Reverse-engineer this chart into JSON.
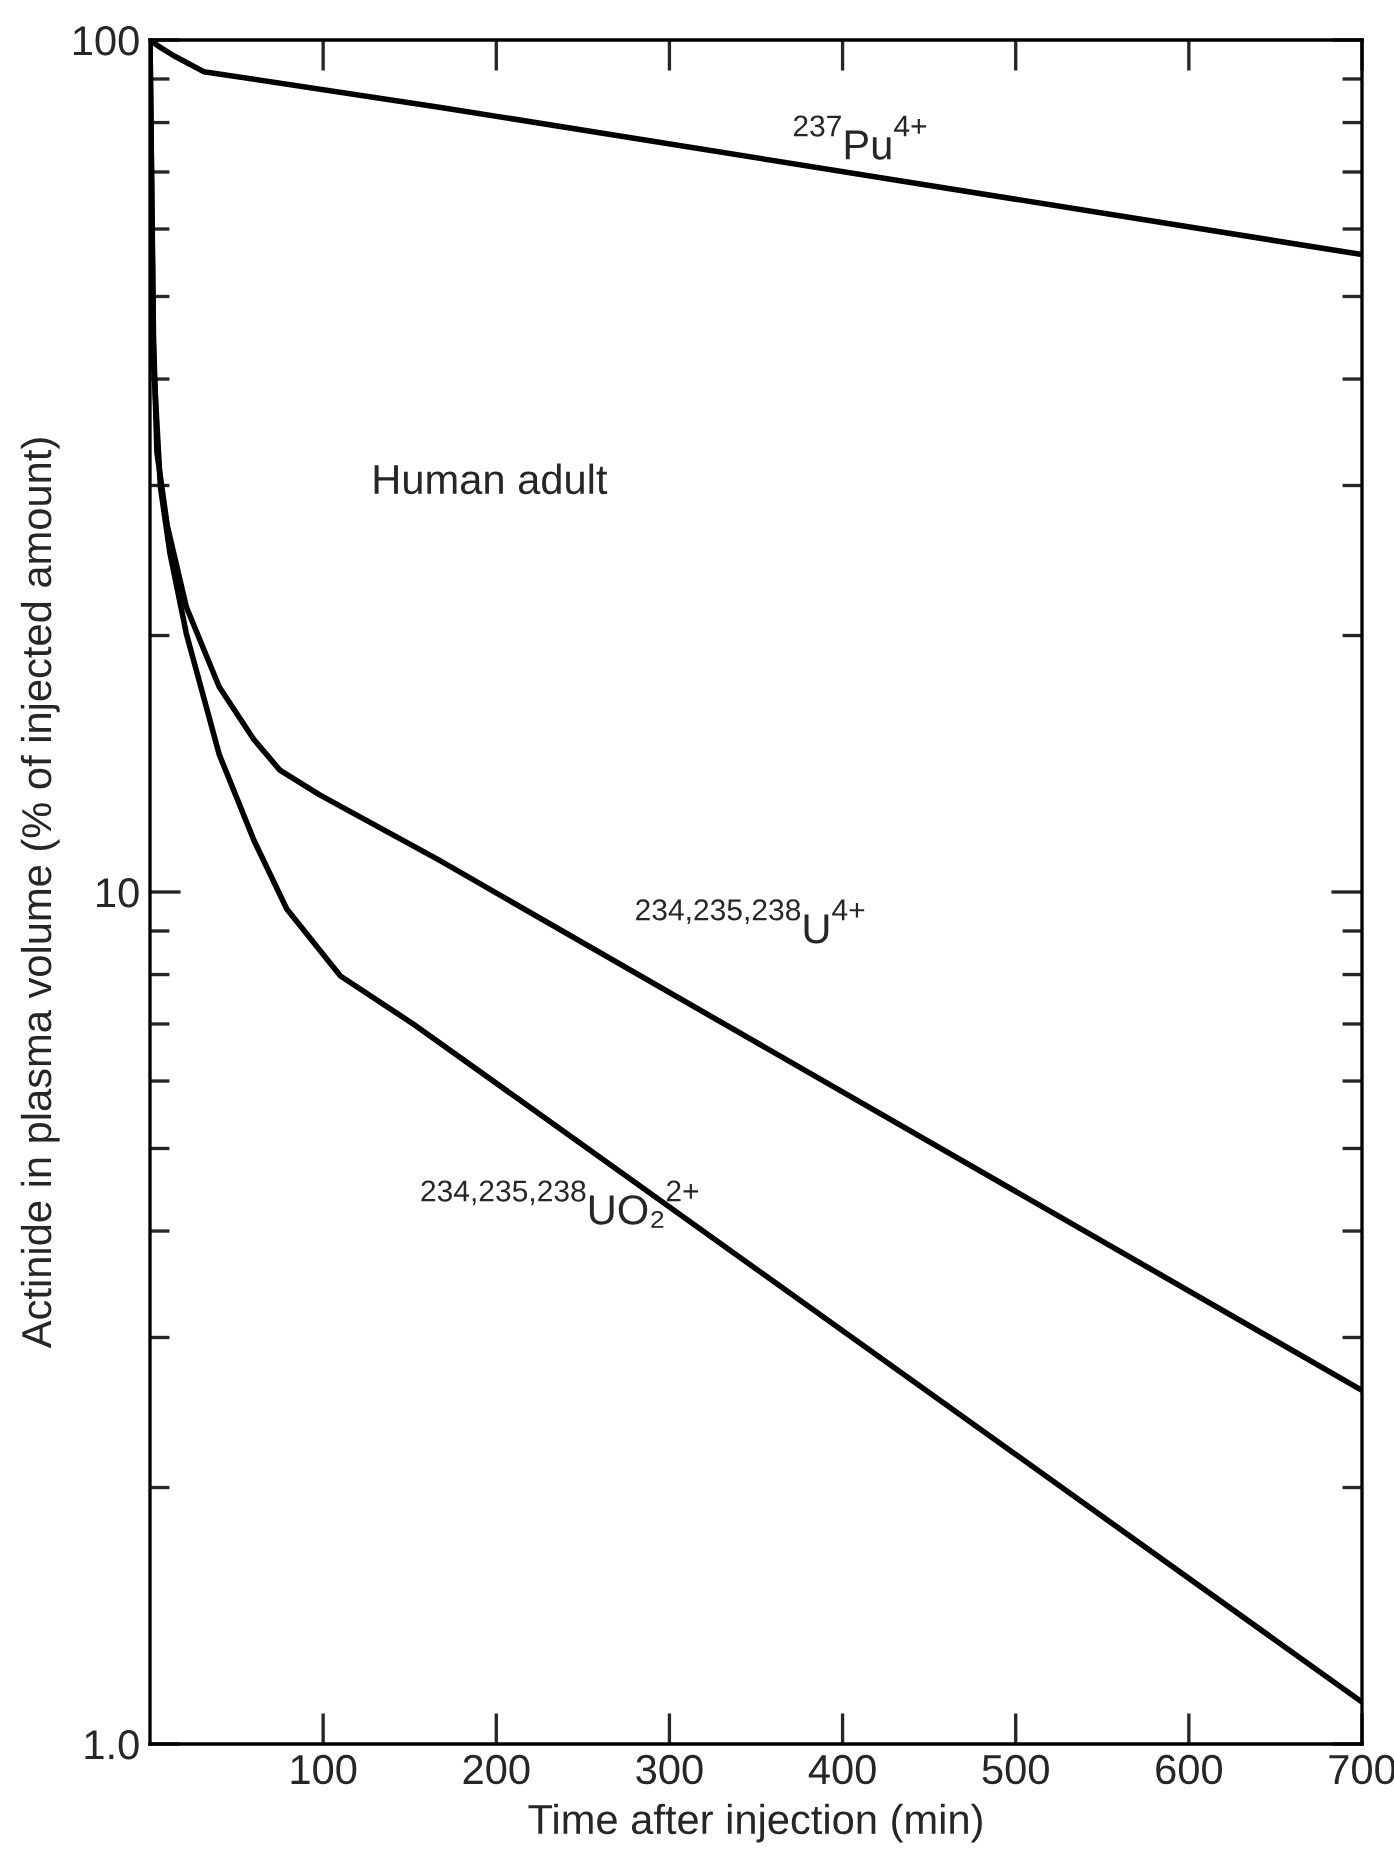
{
  "chart_data": {
    "type": "line",
    "xlabel": "Time after injection (min)",
    "ylabel": "Actinide in plasma volume (% of injected amount)",
    "log": "y",
    "xlim": [
      0,
      700
    ],
    "ylim": [
      1,
      100
    ],
    "xticks": [
      100,
      200,
      300,
      400,
      500,
      600,
      700
    ],
    "yticks": [
      {
        "value": 1,
        "label": "1.0"
      },
      10,
      100
    ],
    "grid": false,
    "legend": false,
    "marker": "none",
    "line_style": "solid",
    "series": [
      {
        "name": "$^{237}$Pu$^{4+}$",
        "color": "#000000",
        "x": [
          0,
          6,
          13.5,
          31,
          167,
          700
        ],
        "values": [
          100,
          98,
          95.9,
          91.8,
          83.4,
          56
        ]
      },
      {
        "name": "$^{234,235,238}$U$^{4+}$",
        "color": "#000000",
        "x": [
          0,
          2,
          4,
          10,
          21,
          40,
          60,
          75,
          98,
          167,
          700
        ],
        "values": [
          100,
          45,
          32.8,
          26.9,
          21.6,
          17.4,
          15.1,
          13.9,
          13.0,
          10.9,
          2.6
        ]
      },
      {
        "name": "$^{234,235,238}$UO₂$^{2+}$",
        "color": "#000000",
        "x": [
          0,
          2,
          6,
          11.5,
          21,
          40,
          60,
          79,
          110,
          152,
          213.6,
          700
        ],
        "values": [
          100,
          42,
          29.9,
          25,
          20.1,
          14.5,
          11.5,
          9.55,
          7.97,
          7.0,
          5.7,
          1.12
        ]
      }
    ],
    "annotations": [
      "Human adult"
    ]
  }
}
